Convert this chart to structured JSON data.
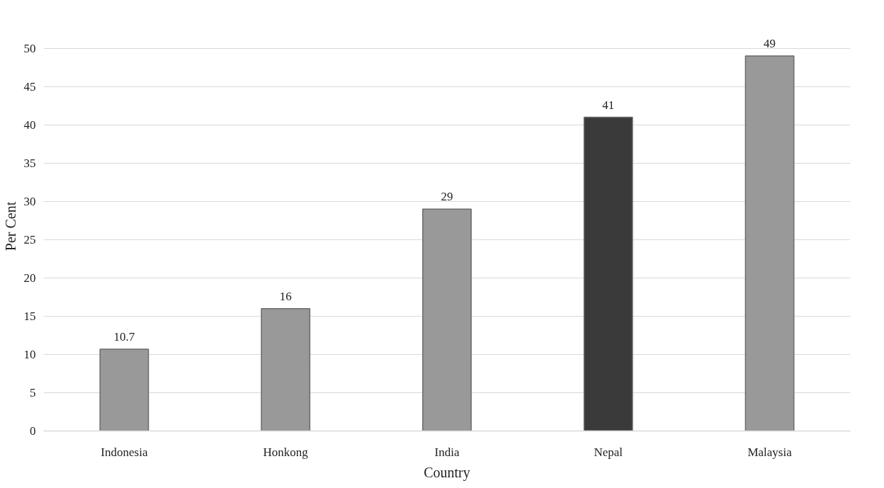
{
  "chart_data": {
    "type": "bar",
    "xlabel": "Country",
    "ylabel": "Per Cent",
    "categories": [
      "Indonesia",
      "Honkong",
      "India",
      "Nepal",
      "Malaysia"
    ],
    "values": [
      10.7,
      16,
      29,
      41,
      49
    ],
    "colors": [
      "#999999",
      "#999999",
      "#999999",
      "#3a3a3a",
      "#999999"
    ],
    "ylim": [
      0,
      50
    ],
    "yticks": [
      0,
      5,
      10,
      15,
      20,
      25,
      30,
      35,
      40,
      45,
      50
    ],
    "grid": "y",
    "data_labels": true,
    "legend": false
  }
}
